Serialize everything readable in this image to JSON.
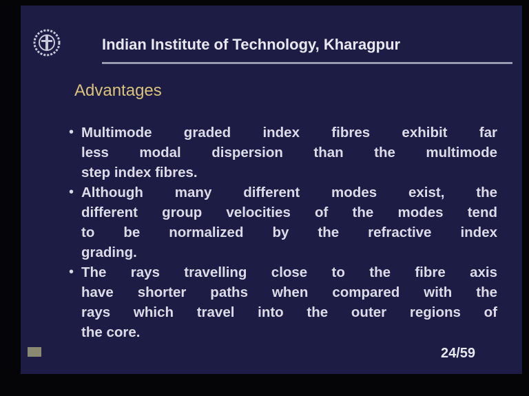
{
  "header": {
    "title": "Indian Institute of Technology, Kharagpur"
  },
  "heading": "Advantages",
  "bullets": [
    {
      "lines": [
        "Multimode graded index fibres exhibit far",
        "less modal dispersion than the multimode",
        "step index fibres."
      ]
    },
    {
      "lines": [
        "Although many different modes exist, the",
        "different group velocities of the modes tend",
        "to be normalized by the refractive index",
        "grading."
      ]
    },
    {
      "lines": [
        "The rays travelling close to the fibre axis",
        "have shorter paths when compared with the",
        "rays which travel into the outer regions of",
        "the core."
      ]
    }
  ],
  "page_number": "24/59"
}
